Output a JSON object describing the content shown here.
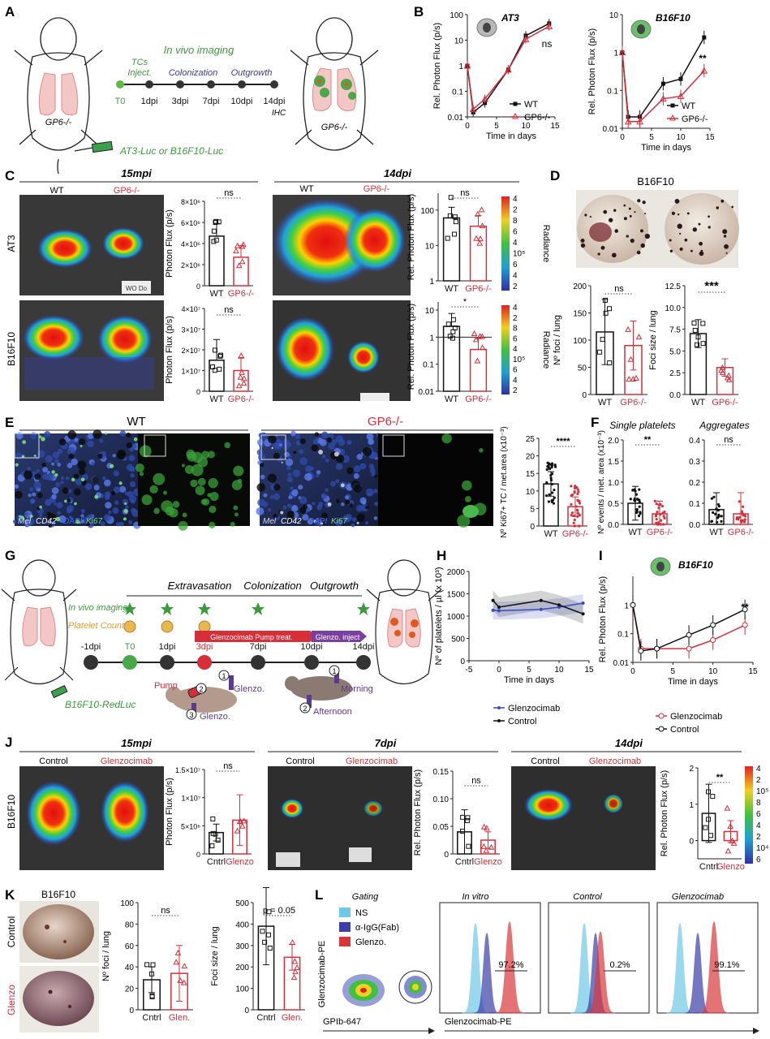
{
  "panel_letters": [
    "A",
    "B",
    "C",
    "D",
    "E",
    "F",
    "G",
    "H",
    "I",
    "J",
    "K",
    "L"
  ],
  "colors": {
    "wt": "#111111",
    "ko": "#d62f3a",
    "green": "#3c9a3c",
    "blue": "#3a3a9a",
    "glenzo_red": "#d62f3a",
    "hist_ns": "#6fc8e6",
    "hist_igg": "#3b3fa6",
    "hist_glenzo": "#d8383c"
  },
  "A": {
    "mouse_left_label": "GP6-/-",
    "mouse_right_label": "GP6-/-",
    "title": "In vivo imaging",
    "phase_tcs": "TCs",
    "phase_inject": "Inject.",
    "phase_colonization": "Colonization",
    "phase_outgrowth": "Outgrowth",
    "timepoints": [
      "T0",
      "1dpi",
      "3dpi",
      "7dpi",
      "10dpi",
      "14dpi"
    ],
    "ihc": "IHC",
    "cells": "AT3-Luc or B16F10-Luc"
  },
  "B": {
    "icon": "tumor-cell-icon",
    "ylabel": "Rel. Photon Flux (p/s)",
    "xlabel": "Time in days",
    "legend_wt": "WT",
    "legend_ko": "GP6-/-"
  },
  "C": {
    "title_15mpi": "15mpi",
    "title_14dpi": "14dpi",
    "wt": "WT",
    "ko": "GP6-/-",
    "row_at3": "AT3",
    "row_b16": "B16F10",
    "ylabel_flux": "Photon Flux (p/s)",
    "ylabel_rel": "Rel. Photon Flux (p/s)",
    "ns": "ns",
    "star": "*",
    "radiance": "Radiance",
    "scale_ticks": [
      "4",
      "2",
      "8",
      "6",
      "4",
      "10⁵",
      "6",
      "4",
      "2"
    ],
    "scale2_ticks": [
      "4",
      "2",
      "8",
      "6",
      "4",
      "10⁵",
      "6",
      "4",
      "2"
    ],
    "at3_15_yticks": [
      "0",
      "2×10⁶",
      "4×10⁶",
      "6×10⁶",
      "8×10⁶"
    ],
    "b16_15_yticks": [
      "0",
      "1×10⁷",
      "2×10⁷",
      "3×10⁷",
      "4×10⁷"
    ],
    "rel_yticks_a": [
      "1",
      "10",
      "100"
    ],
    "rel_yticks_b": [
      "0.01",
      "0.1",
      "1",
      "10"
    ],
    "photo_label": "WO Do"
  },
  "D": {
    "title": "B16F10",
    "ylabel_foci": "Nº foci / lung",
    "ylabel_size": "Foci size / lung",
    "foci_yticks": [
      "0",
      "50",
      "100",
      "150",
      "200"
    ],
    "size_yticks": [
      "0.0",
      "2.5",
      "5.0",
      "7.5",
      "10.0",
      "12.5"
    ],
    "ns": "ns",
    "sig": "***",
    "wt": "WT",
    "ko": "GP6-/-"
  },
  "E": {
    "wt": "WT",
    "ko": "GP6-/-",
    "stain_mel": "Mel",
    "stain_cd42": "CD42",
    "stain_dapi": "DAPI",
    "stain_ki67": "Ki67",
    "ylabel": "Nº Ki67+ TC / met.area (x10⁻³)",
    "yticks": [
      "0",
      "5",
      "10",
      "15",
      "20",
      "25"
    ],
    "sig": "****"
  },
  "F": {
    "title_single": "Single platelets",
    "title_agg": "Aggregates",
    "ylabel": "Nº events / met. area (x10⁻³)",
    "yticks_a": [
      "0.0",
      "0.5",
      "1.0",
      "1.5",
      "2.0"
    ],
    "yticks_b": [
      "0.0",
      "0.1",
      "0.2",
      "0.3",
      "0.4"
    ],
    "sig": "**",
    "ns": "ns",
    "wt": "WT",
    "ko": "GP6-/-"
  },
  "G": {
    "phase_extra": "Extravasation",
    "phase_colon": "Colonization",
    "phase_out": "Outgrowth",
    "in_vivo": "In vivo imaging",
    "platelet_count": "Platelet Count",
    "pump_bar": "Glenzocimab Pump treat.",
    "inject_bar": "Glenzo. inject",
    "timepoints": [
      "-1dpi",
      "T0",
      "1dpi",
      "3dpi",
      "7dpi",
      "10dpi",
      "14dpi"
    ],
    "pump": "Pump",
    "glenzo1": "Glenzo.",
    "glenzo2": "Glenzo.",
    "morning": "Morning",
    "afternoon": "Afternoon",
    "n1": "1",
    "n2": "2",
    "n3": "3",
    "m1": "1",
    "m2": "2",
    "cells": "B16F10-RedLuc"
  },
  "H": {
    "ylabel": "Nº of platelets / µl (x 10³)",
    "xlabel": "Time in days",
    "legend_glenzo": "Glenzocimab",
    "legend_control": "Control"
  },
  "I": {
    "title": "B16F10",
    "ylabel": "Rel. Photon Flux (p/s)",
    "xlabel": "Time in days",
    "legend_glenzo": "Glenzocimab",
    "legend_control": "Control",
    "sig": "**"
  },
  "J": {
    "title_15": "15mpi",
    "title_7": "7dpi",
    "title_14": "14dpi",
    "control": "Control",
    "glenzo": "Glenzocimab",
    "row": "B16F10",
    "ylabel_flux": "Photon Flux (p/s)",
    "ylabel_rel": "Rel. Photon Flux (p/s)",
    "yticks_15": [
      "0",
      "5×10⁶",
      "1×10⁷",
      "1.5×10⁷"
    ],
    "yticks_7": [
      "0",
      "0.05",
      "0.10",
      "0.15"
    ],
    "yticks_14": [
      "0",
      "1",
      "2"
    ],
    "cntrl": "Cntrl",
    "glenzo_short": "Glenzo",
    "ns": "ns",
    "sig": "**",
    "radiance": "Radiance",
    "scale_ticks": [
      "4",
      "2",
      "10⁵",
      "8",
      "6",
      "4",
      "2",
      "10⁴",
      "6"
    ]
  },
  "K": {
    "title": "B16F10",
    "row_control": "Control",
    "row_glenzo": "Glenzo",
    "ylabel_foci": "Nº foci / lung",
    "ylabel_size": "Foci size / lung",
    "foci_yticks": [
      "0",
      "20",
      "40",
      "60",
      "80",
      "100"
    ],
    "size_yticks": [
      "0",
      "100",
      "200",
      "300",
      "400",
      "500"
    ],
    "ns": "ns",
    "p": "p = 0.05",
    "cntrl": "Cntrl",
    "glen": "Glen."
  },
  "L": {
    "gating": "Gating",
    "in_vitro": "In vitro",
    "control": "Control",
    "glenzocimab": "Glenzocimab",
    "legend_ns": "NS",
    "legend_igg": "α-IgG(Fab)",
    "legend_glenzo": "Glenzo.",
    "pct_invitro": "97.2%",
    "pct_control": "0.2%",
    "pct_glenzo": "99.1%",
    "ylabel": "Glenzocimab-PE",
    "xlabel_gate": "GPIb-647",
    "xlabel_hist": "Glenzocimab-PE"
  },
  "chart_data": [
    {
      "id": "B-AT3",
      "type": "line",
      "title": "AT3",
      "xlabel": "Time in days",
      "ylabel": "Rel. Photon Flux (p/s)",
      "yscale": "log",
      "ylim": [
        0.01,
        100
      ],
      "xlim": [
        0,
        15
      ],
      "x": [
        0,
        1,
        3,
        7,
        10,
        14
      ],
      "series": [
        {
          "name": "WT",
          "values": [
            1,
            0.015,
            0.035,
            0.7,
            15,
            45
          ]
        },
        {
          "name": "GP6-/-",
          "values": [
            1,
            0.02,
            0.05,
            0.7,
            11,
            35
          ]
        }
      ],
      "annotation": "ns"
    },
    {
      "id": "B-B16",
      "type": "line",
      "title": "B16F10",
      "xlabel": "Time in days",
      "ylabel": "Rel. Photon Flux (p/s)",
      "yscale": "log",
      "ylim": [
        0.01,
        10
      ],
      "xlim": [
        0,
        15
      ],
      "x": [
        0,
        1,
        3,
        7,
        10,
        14
      ],
      "series": [
        {
          "name": "WT",
          "values": [
            1,
            0.02,
            0.02,
            0.15,
            0.2,
            2.5
          ]
        },
        {
          "name": "GP6-/-",
          "values": [
            1,
            0.015,
            0.015,
            0.06,
            0.07,
            0.33
          ]
        }
      ],
      "annotation": "**"
    },
    {
      "id": "C-AT3-15",
      "type": "bar",
      "categories": [
        "WT",
        "GP6-/-"
      ],
      "values": [
        4.7,
        2.7
      ],
      "unit": "×10⁶",
      "ylim": [
        0,
        8
      ]
    },
    {
      "id": "C-B16-15",
      "type": "bar",
      "categories": [
        "WT",
        "GP6-/-"
      ],
      "values": [
        1.5,
        1.0
      ],
      "unit": "×10⁷",
      "ylim": [
        0,
        4
      ]
    },
    {
      "id": "C-AT3-14",
      "type": "bar",
      "categories": [
        "WT",
        "GP6-/-"
      ],
      "values": [
        60,
        35
      ],
      "yscale": "log",
      "ylim": [
        1,
        300
      ]
    },
    {
      "id": "C-B16-14",
      "type": "bar",
      "categories": [
        "WT",
        "GP6-/-"
      ],
      "values": [
        2.5,
        0.35
      ],
      "yscale": "log",
      "ylim": [
        0.01,
        20
      ]
    },
    {
      "id": "D-foci",
      "type": "bar",
      "categories": [
        "WT",
        "GP6-/-"
      ],
      "values": [
        115,
        90
      ],
      "ylim": [
        0,
        200
      ]
    },
    {
      "id": "D-size",
      "type": "bar",
      "categories": [
        "WT",
        "GP6-/-"
      ],
      "values": [
        7.0,
        3.1
      ],
      "ylim": [
        0,
        12.5
      ]
    },
    {
      "id": "E-ki67",
      "type": "bar",
      "categories": [
        "WT",
        "GP6-/-"
      ],
      "values": [
        12,
        5.5
      ],
      "ylim": [
        0,
        25
      ]
    },
    {
      "id": "F-single",
      "type": "bar",
      "categories": [
        "WT",
        "GP6-/-"
      ],
      "values": [
        0.5,
        0.25
      ],
      "ylim": [
        0,
        2
      ]
    },
    {
      "id": "F-agg",
      "type": "bar",
      "categories": [
        "WT",
        "GP6-/-"
      ],
      "values": [
        0.07,
        0.05
      ],
      "ylim": [
        0,
        0.4
      ]
    },
    {
      "id": "H-platelets",
      "type": "line",
      "xlabel": "Time in days",
      "ylabel": "Nº of platelets / µl (x 10³)",
      "ylim": [
        0,
        2000
      ],
      "xlim": [
        -5,
        15
      ],
      "x": [
        -1,
        0,
        7,
        10,
        14
      ],
      "series": [
        {
          "name": "Glenzocimab",
          "values": [
            1130,
            1120,
            1150,
            1200,
            1290
          ]
        },
        {
          "name": "Control",
          "values": [
            1350,
            1200,
            1350,
            1250,
            1050
          ]
        }
      ]
    },
    {
      "id": "I-B16",
      "type": "line",
      "title": "B16F10",
      "xlabel": "Time in days",
      "ylabel": "Rel. Photon Flux (p/s)",
      "yscale": "log",
      "ylim": [
        0.01,
        10
      ],
      "xlim": [
        0,
        15
      ],
      "x": [
        0,
        1,
        3,
        7,
        10,
        14
      ],
      "series": [
        {
          "name": "Glenzocimab",
          "values": [
            1,
            0.03,
            0.03,
            0.03,
            0.06,
            0.2
          ]
        },
        {
          "name": "Control",
          "values": [
            1,
            0.025,
            0.03,
            0.09,
            0.2,
            0.7
          ]
        }
      ],
      "annotation": "**"
    },
    {
      "id": "J-15",
      "type": "bar",
      "categories": [
        "Cntrl",
        "Glenzo"
      ],
      "values": [
        3.8,
        6.0
      ],
      "unit": "×10⁶",
      "ylim": [
        0,
        15
      ]
    },
    {
      "id": "J-7",
      "type": "bar",
      "categories": [
        "Cntrl",
        "Glenzo"
      ],
      "values": [
        0.04,
        0.025
      ],
      "ylim": [
        0,
        0.15
      ]
    },
    {
      "id": "J-14",
      "type": "bar",
      "categories": [
        "Cntrl",
        "Glenzo"
      ],
      "values": [
        0.75,
        0.25
      ],
      "ylim": [
        -0.5,
        2
      ]
    },
    {
      "id": "K-foci",
      "type": "bar",
      "categories": [
        "Cntrl",
        "Glen."
      ],
      "values": [
        28,
        34
      ],
      "ylim": [
        0,
        100
      ]
    },
    {
      "id": "K-size",
      "type": "bar",
      "categories": [
        "Cntrl",
        "Glen."
      ],
      "values": [
        390,
        245
      ],
      "ylim": [
        0,
        500
      ]
    }
  ]
}
